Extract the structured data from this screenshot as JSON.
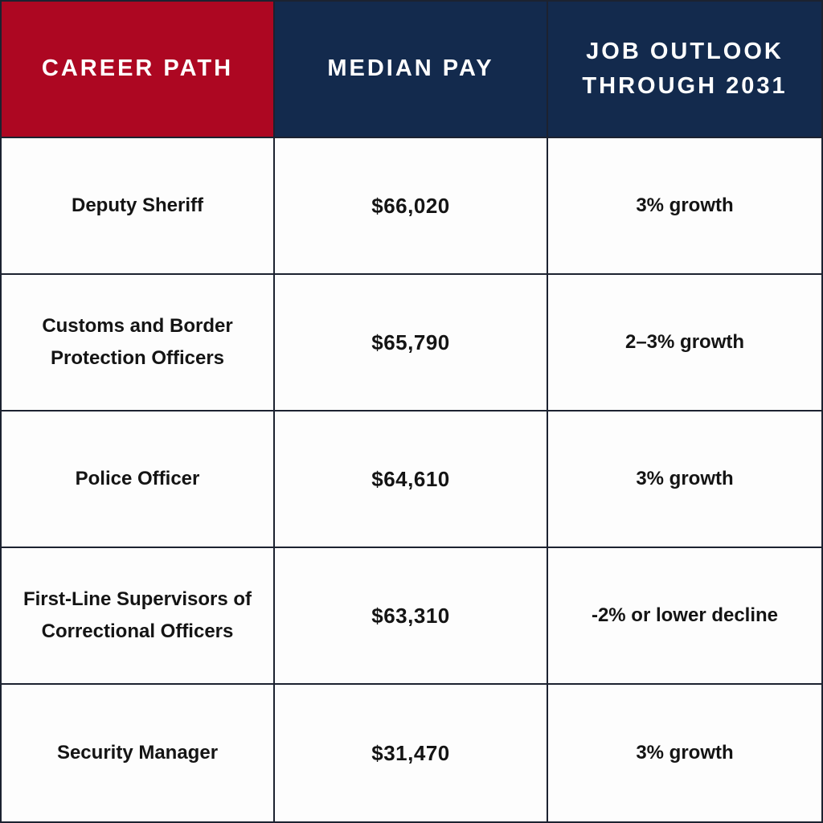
{
  "table": {
    "columns": [
      {
        "label": "CAREER PATH"
      },
      {
        "label": "MEDIAN PAY"
      },
      {
        "label": "JOB OUTLOOK THROUGH 2031"
      }
    ],
    "rows": [
      {
        "career": "Deputy Sheriff",
        "pay": "$66,020",
        "outlook": "3% growth"
      },
      {
        "career": "Customs and Border Protection Officers",
        "pay": "$65,790",
        "outlook": "2–3% growth"
      },
      {
        "career": "Police Officer",
        "pay": "$64,610",
        "outlook": "3% growth"
      },
      {
        "career": "First-Line Supervisors of Correctional Officers",
        "pay": "$63,310",
        "outlook": "-2% or lower decline"
      },
      {
        "career": "Security Manager",
        "pay": "$31,470",
        "outlook": "3% growth"
      }
    ],
    "colors": {
      "career_header_bg": "#AD0722",
      "other_header_bg": "#132A4D",
      "header_text": "#FFFFFF",
      "body_text": "#141414",
      "border": "#1C2230",
      "cell_bg": "#FDFDFD"
    }
  },
  "chart_data": {
    "type": "table",
    "title": "Career paths: median pay and job outlook through 2031",
    "columns": [
      "CAREER PATH",
      "MEDIAN PAY",
      "JOB OUTLOOK THROUGH 2031"
    ],
    "rows": [
      [
        "Deputy Sheriff",
        "$66,020",
        "3% growth"
      ],
      [
        "Customs and Border Protection Officers",
        "$65,790",
        "2–3% growth"
      ],
      [
        "Police Officer",
        "$64,610",
        "3% growth"
      ],
      [
        "First-Line Supervisors of Correctional Officers",
        "$63,310",
        "-2% or lower decline"
      ],
      [
        "Security Manager",
        "$31,470",
        "3% growth"
      ]
    ],
    "median_pay_usd": [
      66020,
      65790,
      64610,
      63310,
      31470
    ],
    "outlook_pct": [
      3,
      2.5,
      3,
      -2,
      3
    ]
  }
}
